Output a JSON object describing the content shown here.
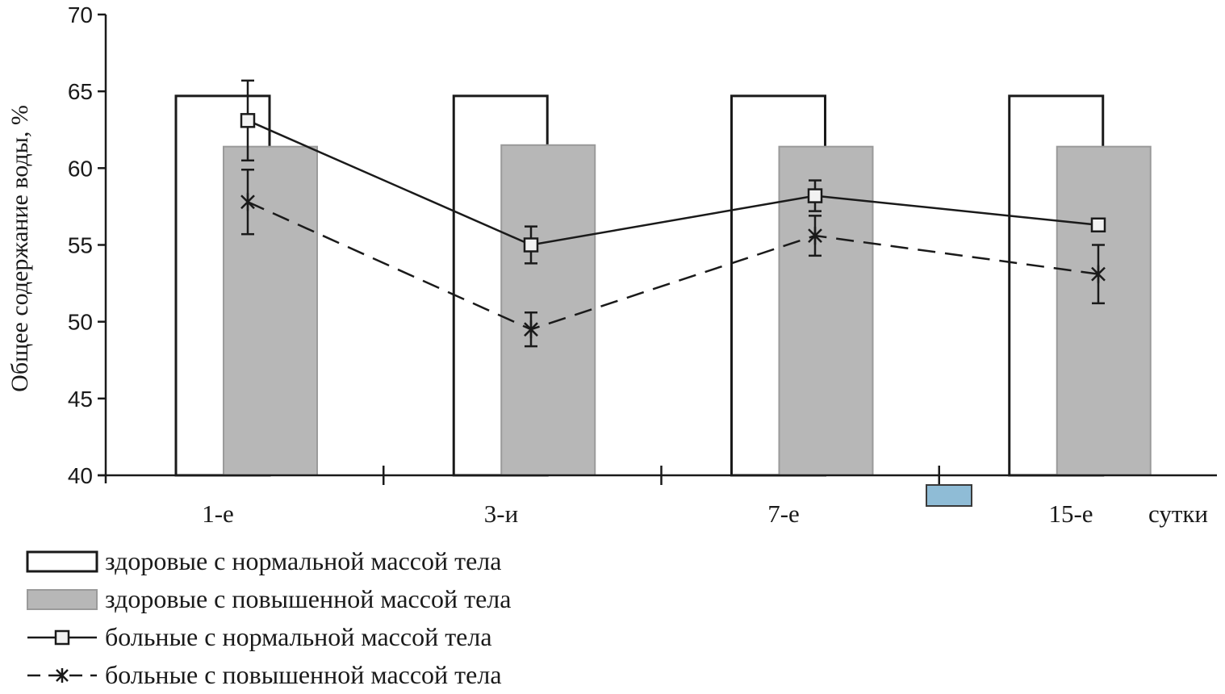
{
  "chart_data": {
    "type": "bar",
    "title": "",
    "xlabel": "сутки",
    "ylabel": "Общее содержание воды, %",
    "ylim": [
      40,
      70
    ],
    "yticks": [
      40,
      45,
      50,
      55,
      60,
      65,
      70
    ],
    "categories": [
      "1-е",
      "3-и",
      "7-е",
      "15-е"
    ],
    "grid": false,
    "legend_position": "bottom-left",
    "series": [
      {
        "name": "здоровые с нормальной массой тела",
        "kind": "bar",
        "fill": "#ffffff",
        "stroke": "#1a1a1a",
        "values": [
          64.7,
          64.7,
          64.7,
          64.7
        ]
      },
      {
        "name": "здоровые с повышенной массой тела",
        "kind": "bar",
        "fill": "#b7b7b7",
        "stroke": "#9a9a9a",
        "values": [
          61.4,
          61.5,
          61.4,
          61.4
        ]
      },
      {
        "name": "больные с нормальной массой тела",
        "kind": "line",
        "dash": "solid",
        "marker": "square",
        "values": [
          63.1,
          55.0,
          58.2,
          56.3
        ],
        "errors": [
          2.6,
          1.2,
          1.0,
          0.3
        ]
      },
      {
        "name": "больные с повышенной массой тела",
        "kind": "line",
        "dash": "dashed",
        "marker": "star",
        "values": [
          57.8,
          49.5,
          55.6,
          53.1
        ],
        "errors": [
          2.1,
          1.1,
          1.3,
          1.9
        ]
      }
    ]
  }
}
